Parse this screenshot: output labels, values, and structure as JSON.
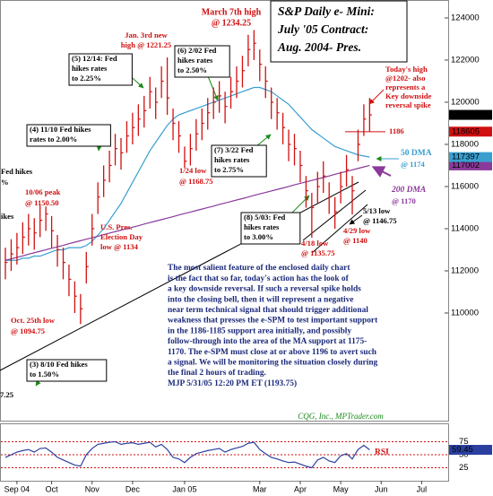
{
  "chart_data": {
    "type": "ohlc",
    "title": [
      "S&P Daily e- Mini:",
      "July '05 Contract:",
      "Aug. 2004- Pres."
    ],
    "categories": [
      null,
      null,
      "Sep 04",
      null,
      null,
      null,
      null,
      null,
      "Oct",
      null,
      null,
      null,
      null,
      null,
      null,
      "Nov",
      null,
      null,
      null,
      null,
      null,
      null,
      "Dec",
      null,
      null,
      null,
      null,
      null,
      null,
      null,
      null,
      "Jan 05",
      null,
      null,
      null,
      null,
      null,
      null,
      null,
      null,
      null,
      null,
      null,
      null,
      "Mar",
      null,
      null,
      null,
      null,
      null,
      null,
      "Apr",
      null,
      null,
      null,
      null,
      null,
      null,
      "May",
      null,
      null,
      null,
      null,
      null,
      null,
      "Jun",
      null,
      null,
      null,
      null,
      null,
      null,
      "Jul"
    ],
    "ohlc": {
      "color": "#d01010",
      "high": [
        113100,
        113500,
        113800,
        114300,
        114700,
        114500,
        115100,
        115050,
        114600,
        113700,
        113100,
        112300,
        111500,
        110900,
        112900,
        114700,
        116200,
        117000,
        117700,
        118500,
        118300,
        119100,
        119500,
        119900,
        120300,
        121200,
        120700,
        121700,
        122125,
        119700,
        119100,
        117900,
        118500,
        119200,
        119700,
        120200,
        120700,
        121000,
        120500,
        121200,
        121700,
        122200,
        123200,
        123425,
        122500,
        121700,
        120700,
        120200,
        119500,
        118700,
        118500,
        117700,
        116500,
        115700,
        116700,
        117200,
        116200,
        115500,
        116700,
        117500,
        116500,
        118700,
        119900,
        120200,
        null,
        null,
        null,
        null,
        null,
        null,
        null,
        null,
        null
      ],
      "low": [
        111600,
        112000,
        112300,
        112800,
        113200,
        113000,
        113600,
        113900,
        113100,
        112200,
        111600,
        110800,
        110000,
        109475,
        111400,
        113200,
        114700,
        115500,
        116200,
        117000,
        116800,
        117600,
        118000,
        118400,
        118800,
        119700,
        119200,
        120200,
        119400,
        118200,
        117600,
        116875,
        117000,
        117700,
        118200,
        118700,
        119200,
        119500,
        119000,
        119700,
        120200,
        120700,
        121700,
        122000,
        121000,
        120200,
        119200,
        118700,
        118000,
        117200,
        117000,
        116200,
        115000,
        113575,
        115200,
        115700,
        114700,
        114000,
        115200,
        116000,
        114675,
        117200,
        118400,
        118605,
        null,
        null,
        null,
        null,
        null,
        null,
        null,
        null,
        null
      ],
      "close": [
        112400,
        112800,
        113100,
        113600,
        114000,
        113800,
        114400,
        114700,
        113900,
        113000,
        112400,
        111600,
        110800,
        110200,
        112200,
        114000,
        115500,
        116300,
        117000,
        117800,
        117600,
        118400,
        118800,
        119200,
        119600,
        120500,
        120000,
        121000,
        120200,
        119000,
        118400,
        117200,
        117800,
        118500,
        119000,
        119500,
        120000,
        120300,
        119800,
        120500,
        121000,
        121500,
        122500,
        122800,
        121800,
        121000,
        120000,
        119500,
        118800,
        118000,
        117800,
        117000,
        115800,
        115000,
        116000,
        116500,
        115500,
        114800,
        116000,
        116800,
        115800,
        118000,
        119200,
        119400,
        null,
        null,
        null,
        null,
        null,
        null,
        null,
        null,
        null
      ]
    },
    "lines": [
      {
        "name": "50 DMA",
        "color": "#3a9fd0",
        "values": [
          112500,
          112500,
          112500,
          112600,
          112600,
          112700,
          112700,
          112800,
          112900,
          113000,
          113000,
          113100,
          113100,
          113100,
          113200,
          113400,
          113700,
          114000,
          114400,
          114800,
          115200,
          115700,
          116200,
          116700,
          117200,
          117700,
          118100,
          118500,
          118900,
          119200,
          119400,
          119500,
          119600,
          119700,
          119800,
          119900,
          120000,
          120100,
          120200,
          120300,
          120400,
          120500,
          120600,
          120700,
          120700,
          120600,
          120500,
          120300,
          120100,
          119900,
          119600,
          119300,
          119000,
          118700,
          118500,
          118300,
          118100,
          117900,
          117800,
          117700,
          117600,
          117500,
          117450,
          117397,
          null,
          null,
          null,
          null,
          null,
          null,
          null,
          null,
          null
        ]
      },
      {
        "name": "200 DMA",
        "color": "#8a3a9a",
        "values": [
          112500,
          112570,
          112640,
          112710,
          112790,
          112860,
          112930,
          113000,
          113070,
          113140,
          113210,
          113290,
          113360,
          113430,
          113500,
          113570,
          113640,
          113720,
          113790,
          113860,
          113930,
          114000,
          114070,
          114140,
          114220,
          114290,
          114360,
          114430,
          114500,
          114570,
          114650,
          114720,
          114790,
          114860,
          114930,
          115000,
          115070,
          115150,
          115220,
          115290,
          115360,
          115430,
          115500,
          115580,
          115650,
          115720,
          115790,
          115860,
          115930,
          116000,
          116080,
          116150,
          116220,
          116290,
          116360,
          116430,
          116500,
          116580,
          116650,
          116720,
          116790,
          116860,
          116930,
          117002,
          null,
          null,
          null,
          null,
          null,
          null,
          null,
          null,
          null
        ]
      }
    ],
    "ylim": [
      104850,
      124850
    ],
    "yticks": [
      110000,
      112000,
      114000,
      116000,
      118000,
      120000,
      122000,
      124000
    ],
    "hlines": [
      {
        "value": 118600,
        "label": "1186",
        "color": "#d01010"
      }
    ],
    "rsi": {
      "name": "RSI",
      "color": "#2a3f9f",
      "grid_color": "#d01010",
      "ylim": [
        0,
        100
      ],
      "yticks": [
        25,
        50,
        75
      ],
      "values": [
        45,
        50,
        55,
        58,
        60,
        55,
        62,
        63,
        55,
        45,
        40,
        35,
        30,
        28,
        50,
        62,
        70,
        72,
        74,
        75,
        70,
        72,
        73,
        70,
        72,
        74,
        65,
        70,
        60,
        45,
        42,
        35,
        45,
        52,
        55,
        58,
        60,
        62,
        55,
        60,
        63,
        66,
        72,
        74,
        60,
        52,
        45,
        42,
        38,
        35,
        36,
        32,
        28,
        25,
        40,
        45,
        38,
        35,
        48,
        52,
        42,
        60,
        68,
        59.45,
        null,
        null,
        null,
        null,
        null,
        null,
        null,
        null,
        null
      ]
    },
    "annotations": [
      {
        "lines": [
          "March 7th high",
          "@ 1234.25"
        ],
        "color": "#d01010"
      },
      {
        "lines": [
          "Jan. 3rd new",
          "high @ 1221.25"
        ],
        "color": "#d01010"
      },
      {
        "lines": [
          "(5) 12/14: Fed",
          "hikes rates",
          "to 2.25%"
        ],
        "color": "#000000"
      },
      {
        "lines": [
          "(6) 2/02 Fed",
          "hikes rates",
          "to 2.50%"
        ],
        "color": "#000000"
      },
      {
        "lines": [
          "(4) 11/10 Fed hikes",
          "rates to 2.00%"
        ],
        "color": "#000000"
      },
      {
        "lines": [
          "(7) 3/22 Fed",
          "hikes rates",
          "to 2.75%"
        ],
        "color": "#000000"
      },
      {
        "lines": [
          "1/24 low",
          "@ 1168.75"
        ],
        "color": "#d01010"
      },
      {
        "lines": [
          "Fed hikes",
          "%"
        ],
        "color": "#000000"
      },
      {
        "lines": [
          "10/06 peak",
          "@ 1150.50"
        ],
        "color": "#d01010"
      },
      {
        "lines": [
          "ikes"
        ],
        "color": "#000000"
      },
      {
        "lines": [
          "U.S. Pres.",
          "Election Day",
          "low @ 1134"
        ],
        "color": "#d01010"
      },
      {
        "lines": [
          "(8) 5/03: Fed",
          "hikes rates",
          "to 3.00%"
        ],
        "color": "#000000"
      },
      {
        "lines": [
          "4/18 low",
          "@ 1135.75"
        ],
        "color": "#d01010"
      },
      {
        "lines": [
          "4/29 low",
          "@ 1140"
        ],
        "color": "#d01010"
      },
      {
        "lines": [
          "5/13 low",
          "@ 1146.75"
        ],
        "color": "#000000"
      },
      {
        "lines": [
          "Oct. 25th low",
          "@ 1094.75"
        ],
        "color": "#d01010"
      },
      {
        "lines": [
          "(3) 8/10 Fed hikes",
          "to 1.50%"
        ],
        "color": "#000000"
      },
      {
        "lines": [
          "7.25"
        ],
        "color": "#000000"
      },
      {
        "lines": [
          "Today's high",
          "@1202- also",
          "represents a",
          "Key downside",
          "reversal spike"
        ],
        "color": "#d01010"
      },
      {
        "lines": [
          "@ 1174"
        ],
        "color": "#3a9fd0"
      },
      {
        "lines": [
          "@ 1170"
        ],
        "color": "#8a3a9a"
      }
    ],
    "commentary": [
      "The most salient feature of the enclosed daily chart",
      "is the fact that so far, today's action has the look of",
      "a key downside reversal. If such a reversal spike holds",
      "into the closing bell, then it will represent a negative",
      "near term technical signal that should trigger additional",
      "weakness that presses the e-SPM to test important support",
      "in the 1186-1185 support area initially, and possibly",
      "follow-through into  the area of the MA support at 1175-",
      "1170. The e-SPM must close at or above 1196 to avert such",
      "a signal. We will be monitoring the situation closely during",
      "the final 2 hours of trading.",
      "MJP 5/31/05 12:20 PM ET (1193.75)"
    ],
    "source": "CQG, Inc., MPTrader.com"
  }
}
